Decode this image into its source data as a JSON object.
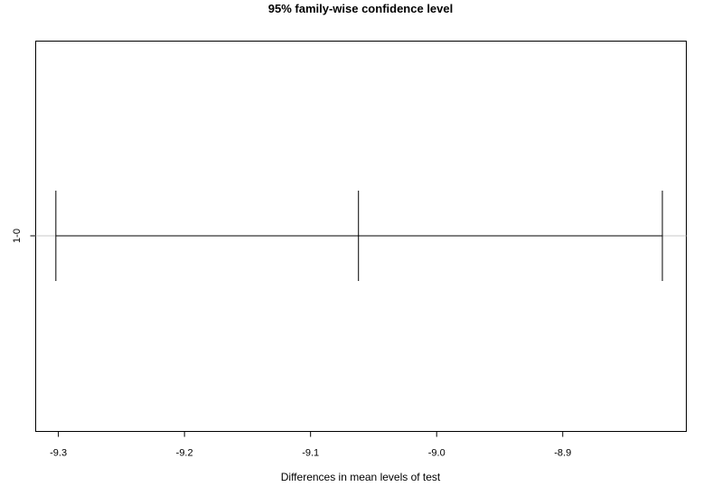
{
  "chart_data": {
    "type": "errorbar",
    "title": "95% family-wise confidence level",
    "xlabel": "Differences in mean levels of test",
    "ylabel": "",
    "xlim": [
      -9.318,
      -8.802
    ],
    "x_ticks": [
      -9.3,
      -9.2,
      -9.1,
      -9.0,
      -8.9
    ],
    "x_tick_labels": [
      "-9.3",
      "-9.2",
      "-9.1",
      "-9.0",
      "-8.9"
    ],
    "grid": false,
    "comparisons": [
      {
        "label": "1-0",
        "lower": -9.302,
        "estimate": -9.062,
        "upper": -8.821
      }
    ],
    "colors": {
      "interval": "#000000",
      "reference_line": "#c8c8c8",
      "frame": "#000000"
    }
  }
}
